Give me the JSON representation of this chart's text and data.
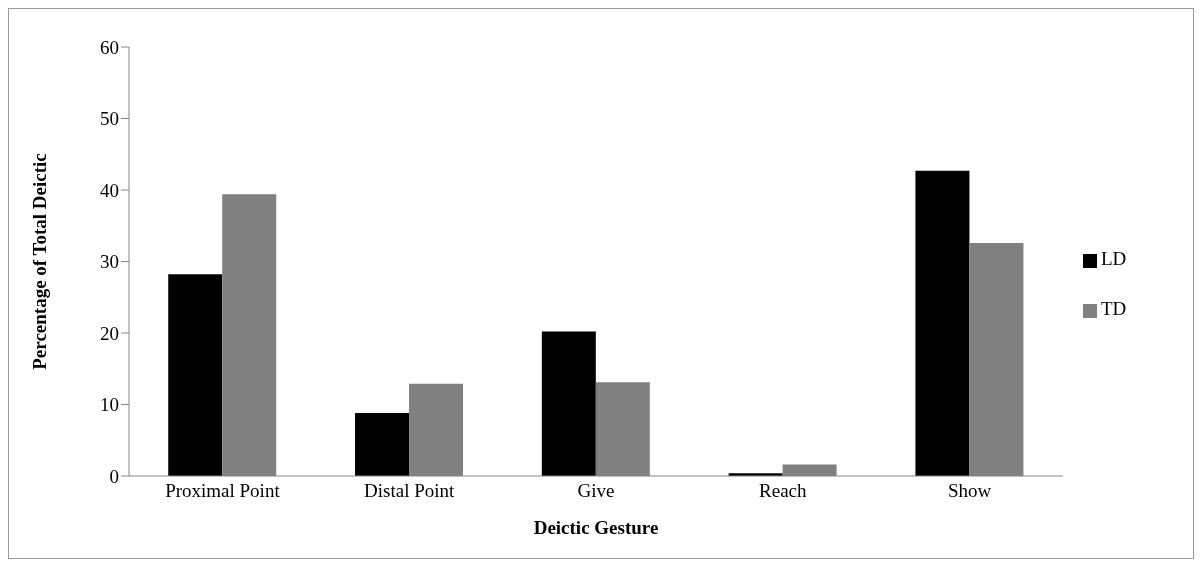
{
  "chart_data": {
    "type": "bar",
    "xlabel": "Deictic Gesture",
    "ylabel": "Percentage of Total Deictic",
    "categories": [
      "Proximal Point",
      "Distal Point",
      "Give",
      "Reach",
      "Show"
    ],
    "series": [
      {
        "name": "LD",
        "color": "#000000",
        "values": [
          28.2,
          8.8,
          20.2,
          0.4,
          42.7
        ]
      },
      {
        "name": "TD",
        "color": "#808080",
        "values": [
          39.4,
          12.9,
          13.1,
          1.6,
          32.6
        ]
      }
    ],
    "ylim": [
      0,
      60
    ],
    "yticks": [
      0,
      10,
      20,
      30,
      40,
      50,
      60
    ],
    "grid": false,
    "legend": "right"
  }
}
